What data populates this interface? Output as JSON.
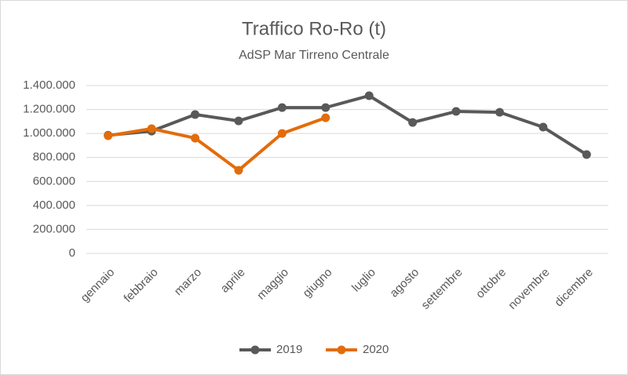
{
  "chart_data": {
    "type": "line",
    "title": "Traffico Ro-Ro (t)",
    "subtitle": "AdSP Mar Tirreno Centrale",
    "categories": [
      "gennaio",
      "febbraio",
      "marzo",
      "aprile",
      "maggio",
      "giugno",
      "luglio",
      "agosto",
      "settembre",
      "ottobre",
      "novembre",
      "dicembre"
    ],
    "series": [
      {
        "name": "2019",
        "color": "#595959",
        "values": [
          985000,
          1020000,
          1158000,
          1105000,
          1216000,
          1216000,
          1315000,
          1092000,
          1184000,
          1177000,
          1053000,
          824000
        ]
      },
      {
        "name": "2020",
        "color": "#e36c0a",
        "values": [
          981000,
          1040000,
          961000,
          693000,
          1000000,
          1131000,
          null,
          null,
          null,
          null,
          null,
          null
        ]
      }
    ],
    "ylim": [
      0,
      1400000
    ],
    "yticks": [
      0,
      {
        "value": 200000,
        "label": "200.000"
      },
      {
        "value": 400000,
        "label": "400.000"
      },
      {
        "value": 600000,
        "label": "600.000"
      },
      {
        "value": 800000,
        "label": "800.000"
      },
      {
        "value": 1000000,
        "label": "1.000.000"
      },
      {
        "value": 1200000,
        "label": "1.200.000"
      },
      {
        "value": 1400000,
        "label": "1.400.000"
      }
    ],
    "grid": true,
    "legend": "bottom"
  }
}
